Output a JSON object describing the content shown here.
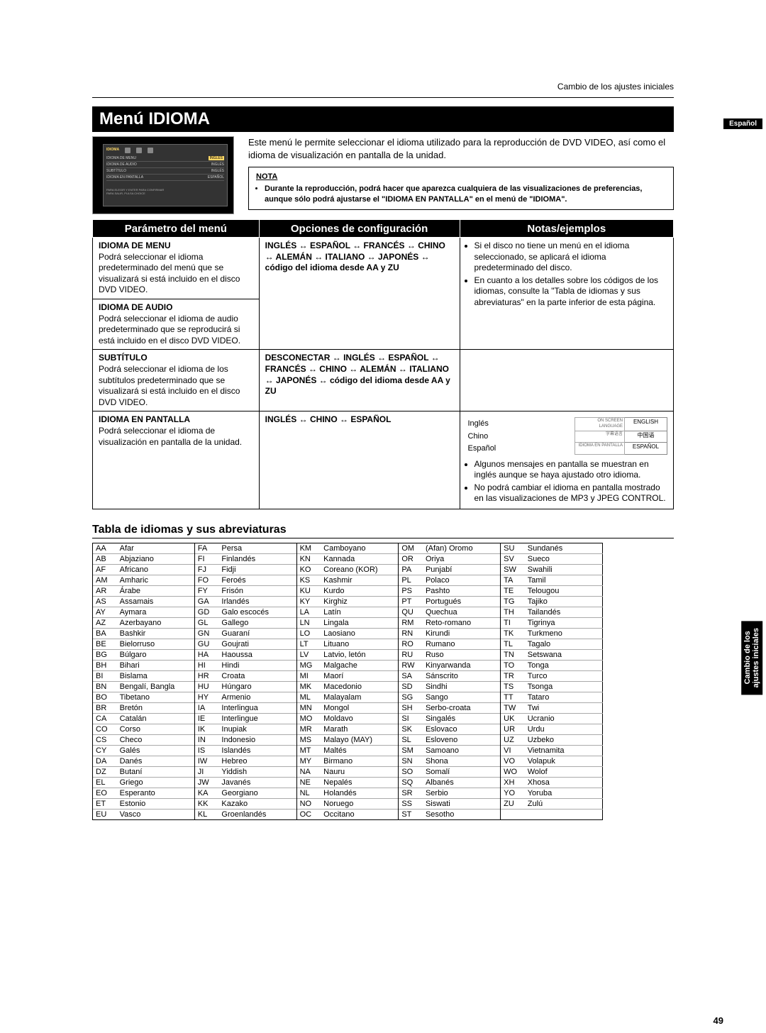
{
  "header": {
    "breadcrumb": "Cambio de los ajustes iniciales"
  },
  "title": "Menú IDIOMA",
  "lang_tag": "Español",
  "side_label_l1": "Cambio de los",
  "side_label_l2": "ajustes iniciales",
  "intro": "Este menú le permite seleccionar el idioma utilizado para la reproducción de DVD VIDEO, así como el idioma de visualización en pantalla de la unidad.",
  "screenshot": {
    "section": "IDIOMA",
    "rows": [
      [
        "IDIOMA DE MENU",
        "INGLÉS"
      ],
      [
        "IDIOMA DE AUDIO",
        "INGLÉS"
      ],
      [
        "SUBTÍTULO",
        "INGLÉS"
      ],
      [
        "IDIOMA EN PANTALLA",
        "ESPAÑOL"
      ]
    ],
    "foot1": "PARA ELEGIR Y ENTER PARA CONFIRMAR",
    "foot2": "PARA SALIR, PULSA CHOICE"
  },
  "nota": {
    "title": "NOTA",
    "text": "Durante la reproducción, podrá hacer que aparezca cualquiera de las visualizaciones de preferencias, aunque sólo podrá ajustarse el \"IDIOMA EN PANTALLA\" en el menú de \"IDIOMA\"."
  },
  "tableHeaders": {
    "c1": "Parámetro del menú",
    "c2": "Opciones de configuración",
    "c3": "Notas/ejemplos"
  },
  "rows": {
    "r1": {
      "title": "IDIOMA DE MENU",
      "desc": "Podrá seleccionar el idioma predeterminado del menú que se visualizará si está incluido en el disco DVD VIDEO.",
      "opts": "INGLÉS ↔ ESPAÑOL ↔ FRANCÉS ↔ CHINO ↔ ALEMÁN ↔ ITALIANO ↔ JAPONÉS ↔ código del idioma desde AA y ZU",
      "note1": "Si el disco no tiene un menú en el idioma seleccionado, se aplicará el idioma predeterminado del disco.",
      "note2": "En cuanto a los detalles sobre los códigos de los idiomas, consulte la \"Tabla de idiomas y sus abreviaturas\" en la parte inferior de esta página."
    },
    "r2": {
      "title": "IDIOMA DE AUDIO",
      "desc": "Podrá seleccionar el idioma de audio predeterminado que se reproducirá si está incluido en el disco DVD VIDEO."
    },
    "r3": {
      "title": "SUBTÍTULO",
      "desc": "Podrá seleccionar el idioma de los subtítulos predeterminado que se visualizará si está incluido en el disco DVD VIDEO.",
      "opts": "DESCONECTAR ↔ INGLÉS ↔ ESPAÑOL ↔ FRANCÉS ↔ CHINO ↔ ALEMÁN ↔ ITALIANO ↔ JAPONÉS ↔ código del idioma desde AA y ZU"
    },
    "r4": {
      "title": "IDIOMA EN PANTALLA",
      "desc": "Podrá seleccionar el idioma de visualización en pantalla de la unidad.",
      "opts": "INGLÉS ↔ CHINO ↔ ESPAÑOL",
      "mini": [
        [
          "Inglés",
          "ON SCREEN LANGUAGE",
          "ENGLISH"
        ],
        [
          "Chino",
          "字幕语言",
          "中国语"
        ],
        [
          "Español",
          "IDIOMA EN PANTALLA",
          "ESPAÑOL"
        ]
      ],
      "note1": "Algunos mensajes en pantalla se muestran en inglés aunque se haya ajustado otro idioma.",
      "note2": "No podrá cambiar el idioma en pantalla mostrado en las visualizaciones de MP3 y JPEG CONTROL."
    }
  },
  "langHeading": "Tabla de idiomas y sus abreviaturas",
  "langs": [
    [
      "AA",
      "Afar",
      "FA",
      "Persa",
      "KM",
      "Camboyano",
      "OM",
      "(Afan) Oromo",
      "SU",
      "Sundanés"
    ],
    [
      "AB",
      "Abjaziano",
      "FI",
      "Finlandés",
      "KN",
      "Kannada",
      "OR",
      "Oriya",
      "SV",
      "Sueco"
    ],
    [
      "AF",
      "Africano",
      "FJ",
      "Fidji",
      "KO",
      "Coreano (KOR)",
      "PA",
      "Punjabí",
      "SW",
      "Swahili"
    ],
    [
      "AM",
      "Amharic",
      "FO",
      "Feroés",
      "KS",
      "Kashmir",
      "PL",
      "Polaco",
      "TA",
      "Tamil"
    ],
    [
      "AR",
      "Árabe",
      "FY",
      "Frisón",
      "KU",
      "Kurdo",
      "PS",
      "Pashto",
      "TE",
      "Telougou"
    ],
    [
      "AS",
      "Assamais",
      "GA",
      "Irlandés",
      "KY",
      "Kirghiz",
      "PT",
      "Portugués",
      "TG",
      "Tajiko"
    ],
    [
      "AY",
      "Aymara",
      "GD",
      "Galo escocés",
      "LA",
      "Latín",
      "QU",
      "Quechua",
      "TH",
      "Tailandés"
    ],
    [
      "AZ",
      "Azerbayano",
      "GL",
      "Gallego",
      "LN",
      "Lingala",
      "RM",
      "Reto-romano",
      "TI",
      "Tigrinya"
    ],
    [
      "BA",
      "Bashkir",
      "GN",
      "Guaraní",
      "LO",
      "Laosiano",
      "RN",
      "Kirundi",
      "TK",
      "Turkmeno"
    ],
    [
      "BE",
      "Bielorruso",
      "GU",
      "Goujrati",
      "LT",
      "Lituano",
      "RO",
      "Rumano",
      "TL",
      "Tagalo"
    ],
    [
      "BG",
      "Búlgaro",
      "HA",
      "Haoussa",
      "LV",
      "Latvio, letón",
      "RU",
      "Ruso",
      "TN",
      "Setswana"
    ],
    [
      "BH",
      "Bihari",
      "HI",
      "Hindi",
      "MG",
      "Malgache",
      "RW",
      "Kinyarwanda",
      "TO",
      "Tonga"
    ],
    [
      "BI",
      "Bislama",
      "HR",
      "Croata",
      "MI",
      "Maorí",
      "SA",
      "Sánscrito",
      "TR",
      "Turco"
    ],
    [
      "BN",
      "Bengalí, Bangla",
      "HU",
      "Húngaro",
      "MK",
      "Macedonio",
      "SD",
      "Sindhi",
      "TS",
      "Tsonga"
    ],
    [
      "BO",
      "Tibetano",
      "HY",
      "Armenio",
      "ML",
      "Malayalam",
      "SG",
      "Sango",
      "TT",
      "Tataro"
    ],
    [
      "BR",
      "Bretón",
      "IA",
      "Interlingua",
      "MN",
      "Mongol",
      "SH",
      "Serbo-croata",
      "TW",
      "Twi"
    ],
    [
      "CA",
      "Catalán",
      "IE",
      "Interlingue",
      "MO",
      "Moldavo",
      "SI",
      "Singalés",
      "UK",
      "Ucranio"
    ],
    [
      "CO",
      "Corso",
      "IK",
      "Inupiak",
      "MR",
      "Marath",
      "SK",
      "Eslovaco",
      "UR",
      "Urdu"
    ],
    [
      "CS",
      "Checo",
      "IN",
      "Indonesio",
      "MS",
      "Malayo (MAY)",
      "SL",
      "Esloveno",
      "UZ",
      "Uzbeko"
    ],
    [
      "CY",
      "Galés",
      "IS",
      "Islandés",
      "MT",
      "Maltés",
      "SM",
      "Samoano",
      "VI",
      "Vietnamita"
    ],
    [
      "DA",
      "Danés",
      "IW",
      "Hebreo",
      "MY",
      "Birmano",
      "SN",
      "Shona",
      "VO",
      "Volapuk"
    ],
    [
      "DZ",
      "Butaní",
      "JI",
      "Yiddish",
      "NA",
      "Nauru",
      "SO",
      "Somalí",
      "WO",
      "Wolof"
    ],
    [
      "EL",
      "Griego",
      "JW",
      "Javanés",
      "NE",
      "Nepalés",
      "SQ",
      "Albanés",
      "XH",
      "Xhosa"
    ],
    [
      "EO",
      "Esperanto",
      "KA",
      "Georgiano",
      "NL",
      "Holandés",
      "SR",
      "Serbio",
      "YO",
      "Yoruba"
    ],
    [
      "ET",
      "Estonio",
      "KK",
      "Kazako",
      "NO",
      "Noruego",
      "SS",
      "Siswati",
      "ZU",
      "Zulú"
    ],
    [
      "EU",
      "Vasco",
      "KL",
      "Groenlandés",
      "OC",
      "Occitano",
      "ST",
      "Sesotho",
      "",
      ""
    ]
  ],
  "pageNum": "49"
}
